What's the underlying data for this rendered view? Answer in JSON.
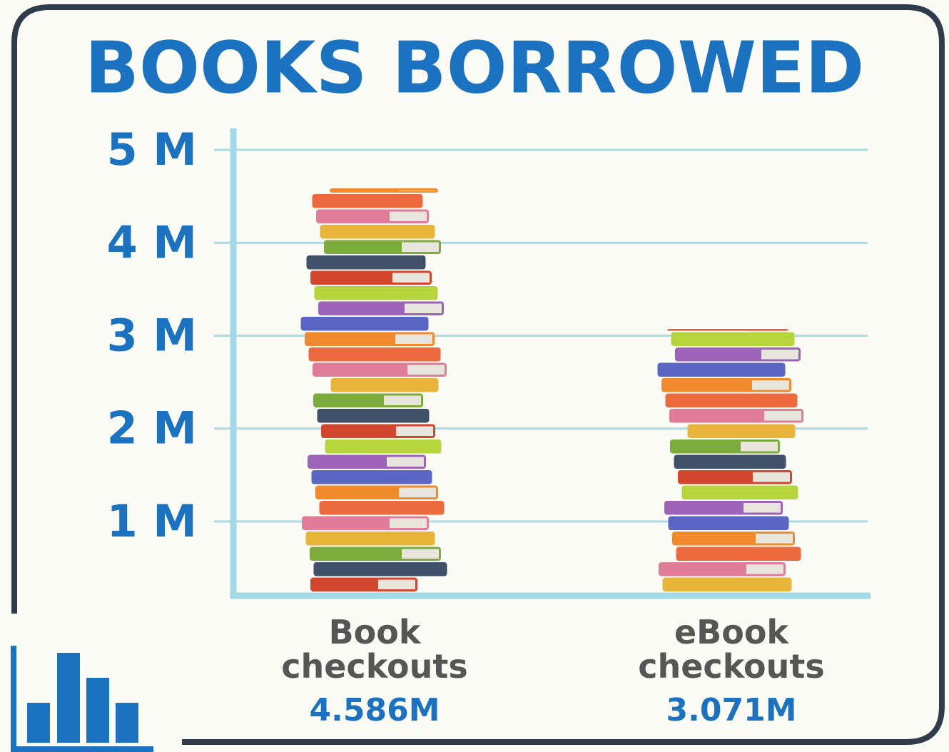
{
  "chart_data": {
    "type": "bar",
    "title": "BOOKS BORROWED",
    "categories": [
      "Book checkouts",
      "eBook checkouts"
    ],
    "values": [
      4.586,
      3.071
    ],
    "value_labels": [
      "4.586M",
      "3.071M"
    ],
    "ylim": [
      0.2,
      5.2
    ],
    "yticks": [
      {
        "value": 1,
        "label": "1 M"
      },
      {
        "value": 2,
        "label": "2 M"
      },
      {
        "value": 3,
        "label": "3 M"
      },
      {
        "value": 4,
        "label": "4 M"
      },
      {
        "value": 5,
        "label": "5 M"
      }
    ],
    "grid": true,
    "colors": [
      "#d2462e",
      "#3f5068",
      "#7bab3a",
      "#e8b53a",
      "#e07b9a",
      "#ec6a3e",
      "#f08a2c",
      "#5b66c4",
      "#9c63b9",
      "#b5d53a",
      "#e8e6dc"
    ]
  }
}
